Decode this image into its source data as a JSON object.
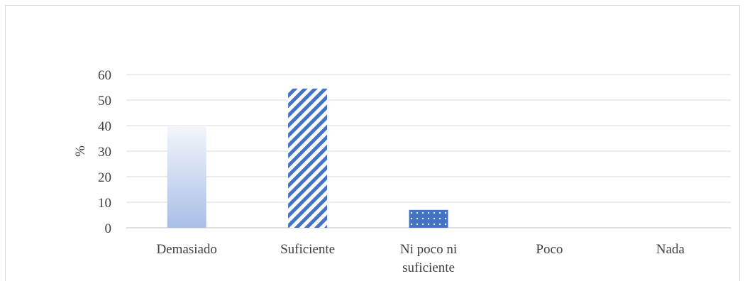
{
  "chart_data": {
    "type": "bar",
    "title": "",
    "xlabel": "",
    "ylabel": "%",
    "ylim": [
      0,
      60
    ],
    "yticks": [
      0,
      10,
      20,
      30,
      40,
      50,
      60
    ],
    "grid": true,
    "categories": [
      [
        "Demasiado"
      ],
      [
        "Suficiente"
      ],
      [
        "Ni poco ni",
        "suficiente"
      ],
      [
        "Poco"
      ],
      [
        "Nada"
      ]
    ],
    "values": [
      40,
      54.5,
      7,
      0,
      0
    ],
    "bar_styles": [
      "gradient",
      "diagonal-stripes",
      "dots",
      "none",
      "none"
    ],
    "colors": {
      "bar_fill": "#4472c4",
      "gradient_top": "#f3f6fb",
      "gradient_bottom": "#a9bfe6",
      "grid": "#d9d9d9",
      "axis": "#bfbfbf",
      "text": "#404040"
    }
  }
}
